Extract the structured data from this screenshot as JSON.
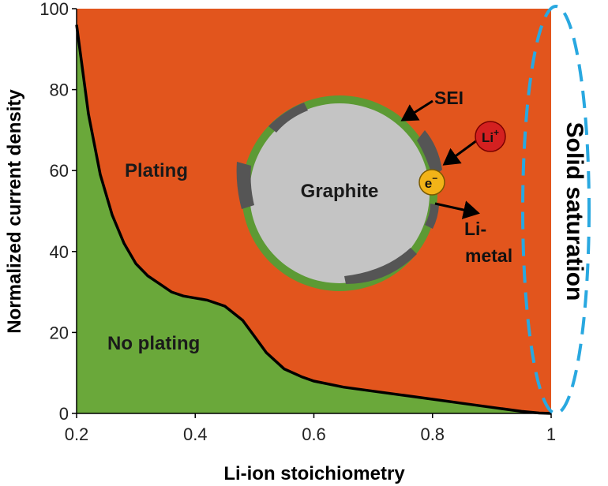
{
  "chart_data": {
    "type": "area",
    "xlabel": "Li-ion stoichiometry",
    "ylabel": "Normalized current density",
    "xlim": [
      0.2,
      1.0
    ],
    "ylim": [
      0,
      100
    ],
    "x_ticks": [
      "0.2",
      "0.4",
      "0.6",
      "0.8",
      "1"
    ],
    "y_ticks": [
      "0",
      "20",
      "40",
      "60",
      "80",
      "100"
    ],
    "grid": false,
    "legend": "none",
    "boundary": {
      "x": [
        0.2,
        0.21,
        0.22,
        0.24,
        0.26,
        0.28,
        0.3,
        0.32,
        0.34,
        0.36,
        0.38,
        0.4,
        0.42,
        0.45,
        0.48,
        0.5,
        0.52,
        0.55,
        0.58,
        0.6,
        0.65,
        0.7,
        0.75,
        0.8,
        0.85,
        0.9,
        0.95,
        0.98,
        1.0
      ],
      "y": [
        96,
        85,
        74,
        59,
        49,
        42,
        37,
        34,
        32,
        30,
        29,
        28.5,
        28,
        26.5,
        23,
        19,
        15,
        11,
        9,
        8,
        6.5,
        5.5,
        4.5,
        3.5,
        2.5,
        1.5,
        0.5,
        0.1,
        0
      ]
    },
    "regions": [
      {
        "name": "Plating",
        "color": "#e2551d"
      },
      {
        "name": "No plating",
        "color": "#6aa83a"
      }
    ],
    "annotations": {
      "particle": "Graphite",
      "sei": "SEI",
      "li_ion": "Li",
      "li_ion_sup": "+",
      "electron": "e",
      "electron_sup": "−",
      "li_metal_line1": "Li-",
      "li_metal_line2": "metal",
      "saturation": "Solid saturation"
    },
    "colors": {
      "plating": "#e2551d",
      "no_plating": "#6aa83a",
      "boundary": "#000000",
      "sei": "#5c9a34",
      "graphite": "#c4c4c4",
      "li_metal": "#555555",
      "li_ion": "#d42020",
      "electron": "#f2b318",
      "saturation_outline": "#29a8e0"
    }
  }
}
